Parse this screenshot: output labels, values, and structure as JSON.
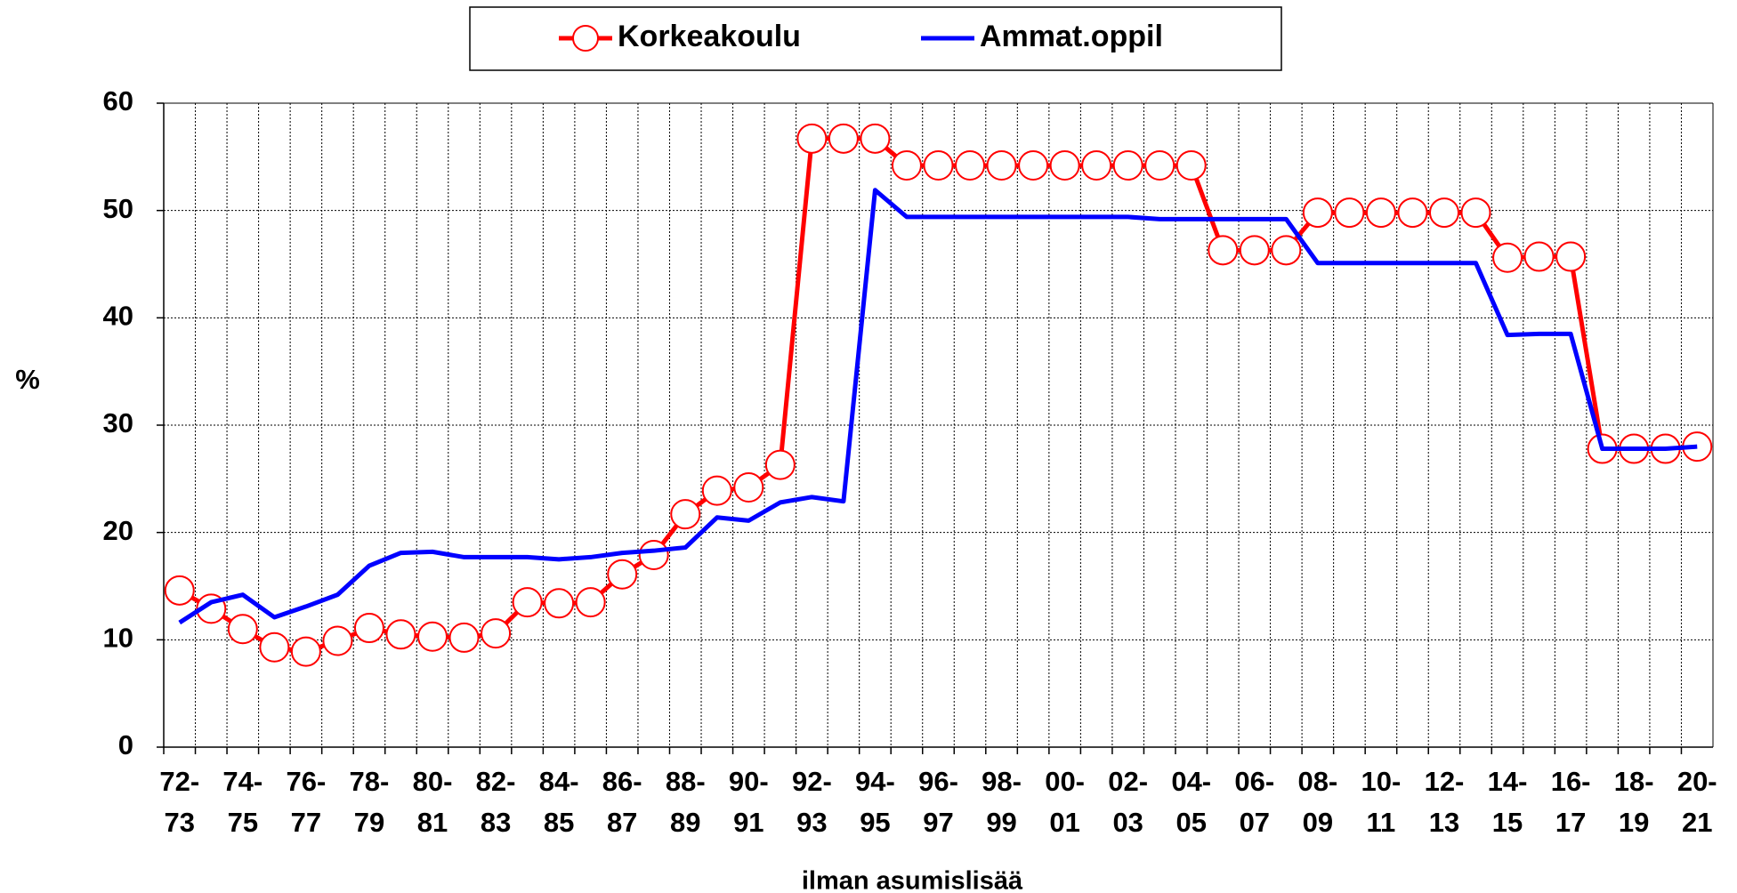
{
  "chart_data": {
    "type": "line",
    "xlabel": "ilman asumislisää",
    "ylabel": "%",
    "categories": [
      "72-73",
      null,
      "74-75",
      null,
      "76-77",
      null,
      "78-79",
      null,
      "80-81",
      null,
      "82-83",
      null,
      "84-85",
      null,
      "86-87",
      null,
      "88-89",
      null,
      "90-91",
      null,
      "92-93",
      null,
      "94-95",
      null,
      "96-97",
      null,
      "98-99",
      null,
      "00-01",
      null,
      "02-03",
      null,
      "04-05",
      null,
      "06-07",
      null,
      "08-09",
      null,
      "10-11",
      null,
      "12-13",
      null,
      "14-15",
      null,
      "16-17",
      null,
      "18-19",
      null,
      "20-21"
    ],
    "series": [
      {
        "name": "Korkeakoulu",
        "color": "#ff0000",
        "marker": "circle",
        "values": [
          14.6,
          12.9,
          11.0,
          9.3,
          8.9,
          9.9,
          11.1,
          10.5,
          10.3,
          10.2,
          10.6,
          13.5,
          13.4,
          13.5,
          16.1,
          17.9,
          21.7,
          23.9,
          24.2,
          26.3,
          56.7,
          56.7,
          56.7,
          54.2,
          54.2,
          54.2,
          54.2,
          54.2,
          54.2,
          54.2,
          54.2,
          54.2,
          54.2,
          46.3,
          46.3,
          46.3,
          49.8,
          49.8,
          49.8,
          49.8,
          49.8,
          49.8,
          45.6,
          45.7,
          45.7,
          27.8,
          27.8,
          27.8,
          28.0
        ]
      },
      {
        "name": "Ammat.oppil",
        "color": "#0000ff",
        "values": [
          11.6,
          13.5,
          14.2,
          12.1,
          13.1,
          14.2,
          16.9,
          18.1,
          18.2,
          17.7,
          17.7,
          17.7,
          17.5,
          17.7,
          18.1,
          18.3,
          18.6,
          21.4,
          21.1,
          22.8,
          23.3,
          22.9,
          51.9,
          49.4,
          49.4,
          49.4,
          49.4,
          49.4,
          49.4,
          49.4,
          49.4,
          49.2,
          49.2,
          49.2,
          49.2,
          49.2,
          45.1,
          45.1,
          45.1,
          45.1,
          45.1,
          45.1,
          38.4,
          38.5,
          38.5,
          27.8,
          27.8,
          27.8,
          28.0
        ]
      }
    ],
    "ylim": [
      0,
      60
    ],
    "yticks": [
      0,
      10,
      20,
      30,
      40,
      50,
      60
    ],
    "grid": true,
    "legend": "top"
  }
}
